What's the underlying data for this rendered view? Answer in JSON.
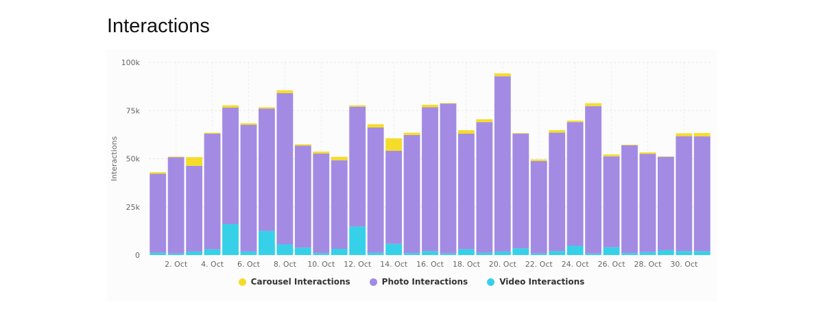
{
  "page": {
    "title": "Interactions"
  },
  "chart_data": {
    "type": "bar",
    "stacked": true,
    "title": "Interactions",
    "xlabel": "",
    "ylabel": "Interactions",
    "ylim": [
      0,
      100000
    ],
    "y_ticks": [
      {
        "value": 0,
        "label": "0"
      },
      {
        "value": 25000,
        "label": "25k"
      },
      {
        "value": 50000,
        "label": "50k"
      },
      {
        "value": 75000,
        "label": "75k"
      },
      {
        "value": 100000,
        "label": "100k"
      }
    ],
    "x_tick_labels": [
      {
        "index": 1,
        "label": "2. Oct"
      },
      {
        "index": 3,
        "label": "4. Oct"
      },
      {
        "index": 5,
        "label": "6. Oct"
      },
      {
        "index": 7,
        "label": "8. Oct"
      },
      {
        "index": 9,
        "label": "10. Oct"
      },
      {
        "index": 11,
        "label": "12. Oct"
      },
      {
        "index": 13,
        "label": "14. Oct"
      },
      {
        "index": 15,
        "label": "16. Oct"
      },
      {
        "index": 17,
        "label": "18. Oct"
      },
      {
        "index": 19,
        "label": "20. Oct"
      },
      {
        "index": 21,
        "label": "22. Oct"
      },
      {
        "index": 23,
        "label": "24. Oct"
      },
      {
        "index": 25,
        "label": "26. Oct"
      },
      {
        "index": 27,
        "label": "28. Oct"
      },
      {
        "index": 29,
        "label": "30. Oct"
      }
    ],
    "categories": [
      "1. Oct",
      "2. Oct",
      "3. Oct",
      "4. Oct",
      "5. Oct",
      "6. Oct",
      "7. Oct",
      "8. Oct",
      "9. Oct",
      "10. Oct",
      "11. Oct",
      "12. Oct",
      "13. Oct",
      "14. Oct",
      "15. Oct",
      "16. Oct",
      "17. Oct",
      "18. Oct",
      "19. Oct",
      "20. Oct",
      "21. Oct",
      "22. Oct",
      "23. Oct",
      "24. Oct",
      "25. Oct",
      "26. Oct",
      "27. Oct",
      "28. Oct",
      "29. Oct",
      "30. Oct",
      "31. Oct"
    ],
    "series": [
      {
        "name": "Video Interactions",
        "color": "#36d1e8",
        "values": [
          1200,
          800,
          1800,
          3000,
          16000,
          1800,
          12500,
          5500,
          3800,
          1000,
          3200,
          14800,
          1200,
          5800,
          1000,
          2000,
          800,
          3000,
          1200,
          1800,
          3500,
          800,
          2000,
          4800,
          800,
          4000,
          1000,
          1500,
          2500,
          2000,
          2000
        ]
      },
      {
        "name": "Photo Interactions",
        "color": "#a38be4",
        "values": [
          41000,
          50000,
          44500,
          60000,
          60500,
          65800,
          63500,
          78500,
          53000,
          51700,
          46000,
          62200,
          65000,
          48300,
          61300,
          74700,
          77800,
          60000,
          67800,
          91000,
          59500,
          48000,
          61500,
          64200,
          76500,
          47200,
          56000,
          51000,
          48500,
          59700,
          59600
        ]
      },
      {
        "name": "Carousel Interactions",
        "color": "#f5dc2a",
        "values": [
          800,
          300,
          4500,
          500,
          1200,
          800,
          700,
          1500,
          700,
          1000,
          1800,
          700,
          1700,
          6500,
          1200,
          1300,
          300,
          1800,
          1500,
          1500,
          300,
          800,
          1300,
          800,
          1500,
          1000,
          300,
          800,
          200,
          1500,
          1700
        ]
      }
    ],
    "legend": {
      "placement": "bottom",
      "items": [
        {
          "label": "Carousel Interactions",
          "color": "#f5dc2a"
        },
        {
          "label": "Photo Interactions",
          "color": "#a38be4"
        },
        {
          "label": "Video Interactions",
          "color": "#36d1e8"
        }
      ]
    },
    "grid": true
  }
}
